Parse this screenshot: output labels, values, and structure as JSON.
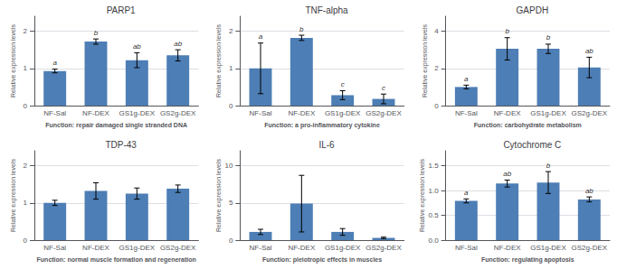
{
  "chart_data": [
    {
      "type": "bar",
      "title": "PARP1",
      "ylabel": "Relative expression levels",
      "xlabel": "Function: repair damaged single stranded DNA",
      "categories": [
        "NF-Sal",
        "NF-DEX",
        "GS1g-DEX",
        "GS2g-DEX"
      ],
      "values": [
        0.93,
        1.72,
        1.22,
        1.35
      ],
      "errors": [
        0.05,
        0.07,
        0.2,
        0.15
      ],
      "annotations": [
        "a",
        "b",
        "ab",
        "ab"
      ],
      "ylim": [
        0,
        2.4
      ],
      "yticks": [
        0,
        1,
        2
      ],
      "color": "#4d7eb5",
      "grid": true
    },
    {
      "type": "bar",
      "title": "TNF-alpha",
      "ylabel": "Relative expression levels",
      "xlabel": "Function: a pro-inflammatory cytokine",
      "categories": [
        "NF-Sal",
        "NF-DEX",
        "GS1g-DEX",
        "GS2g-DEX"
      ],
      "values": [
        1.0,
        1.82,
        0.28,
        0.18
      ],
      "errors": [
        0.68,
        0.07,
        0.12,
        0.13
      ],
      "annotations": [
        "a",
        "b",
        "c",
        "c"
      ],
      "ylim": [
        0,
        2.4
      ],
      "yticks": [
        0,
        1,
        2
      ],
      "color": "#4d7eb5",
      "grid": true
    },
    {
      "type": "bar",
      "title": "GAPDH",
      "ylabel": "Relative expression levels",
      "xlabel": "Function: carbohydrate metabolism",
      "categories": [
        "NF-Sal",
        "NF-DEX",
        "GS1g-DEX",
        "GS2g-DEX"
      ],
      "values": [
        1.0,
        3.05,
        3.05,
        2.05
      ],
      "errors": [
        0.1,
        0.6,
        0.25,
        0.55
      ],
      "annotations": [
        "a",
        "b",
        "b",
        "ab"
      ],
      "ylim": [
        0,
        4.8
      ],
      "yticks": [
        0,
        2,
        4
      ],
      "color": "#4d7eb5",
      "grid": true
    },
    {
      "type": "bar",
      "title": "TDP-43",
      "ylabel": "Relative expression levels",
      "xlabel": "Function: normal muscle formation and regeneration",
      "categories": [
        "NF-Sal",
        "NF-DEX",
        "GS1g-DEX",
        "GS2g-DEX"
      ],
      "values": [
        1.0,
        1.32,
        1.25,
        1.38
      ],
      "errors": [
        0.07,
        0.22,
        0.15,
        0.1
      ],
      "ylim": [
        0,
        2.4
      ],
      "yticks": [
        0,
        1,
        2
      ],
      "color": "#4d7eb5",
      "grid": true
    },
    {
      "type": "bar",
      "title": "IL-6",
      "ylabel": "Relative expression levels",
      "xlabel": "Function: pleiotropic effects in muscles",
      "categories": [
        "NF-Sal",
        "NF-DEX",
        "GS1g-DEX",
        "GS2g-DEX"
      ],
      "values": [
        1.1,
        4.9,
        1.1,
        0.3
      ],
      "errors": [
        0.35,
        3.8,
        0.45,
        0.1
      ],
      "ylim": [
        0,
        12.0
      ],
      "yticks": [
        0,
        5,
        10
      ],
      "color": "#4d7eb5",
      "grid": true
    },
    {
      "type": "bar",
      "title": "Cytochrome C",
      "ylabel": "Relative expression levels",
      "xlabel": "Function: regulating apoptosis",
      "categories": [
        "NF-Sal",
        "NF-DEX",
        "GS1g-DEX",
        "GS2g-DEX"
      ],
      "values": [
        0.79,
        1.14,
        1.16,
        0.82
      ],
      "errors": [
        0.04,
        0.07,
        0.22,
        0.05
      ],
      "annotations": [
        "a",
        "ab",
        "b",
        "ab"
      ],
      "ylim": [
        0,
        1.8
      ],
      "yticks": [
        {
          "value": 0,
          "label": "0.0"
        },
        0.5,
        {
          "value": 1,
          "label": "1.0"
        },
        1.5
      ],
      "color": "#4d7eb5",
      "grid": true
    }
  ]
}
